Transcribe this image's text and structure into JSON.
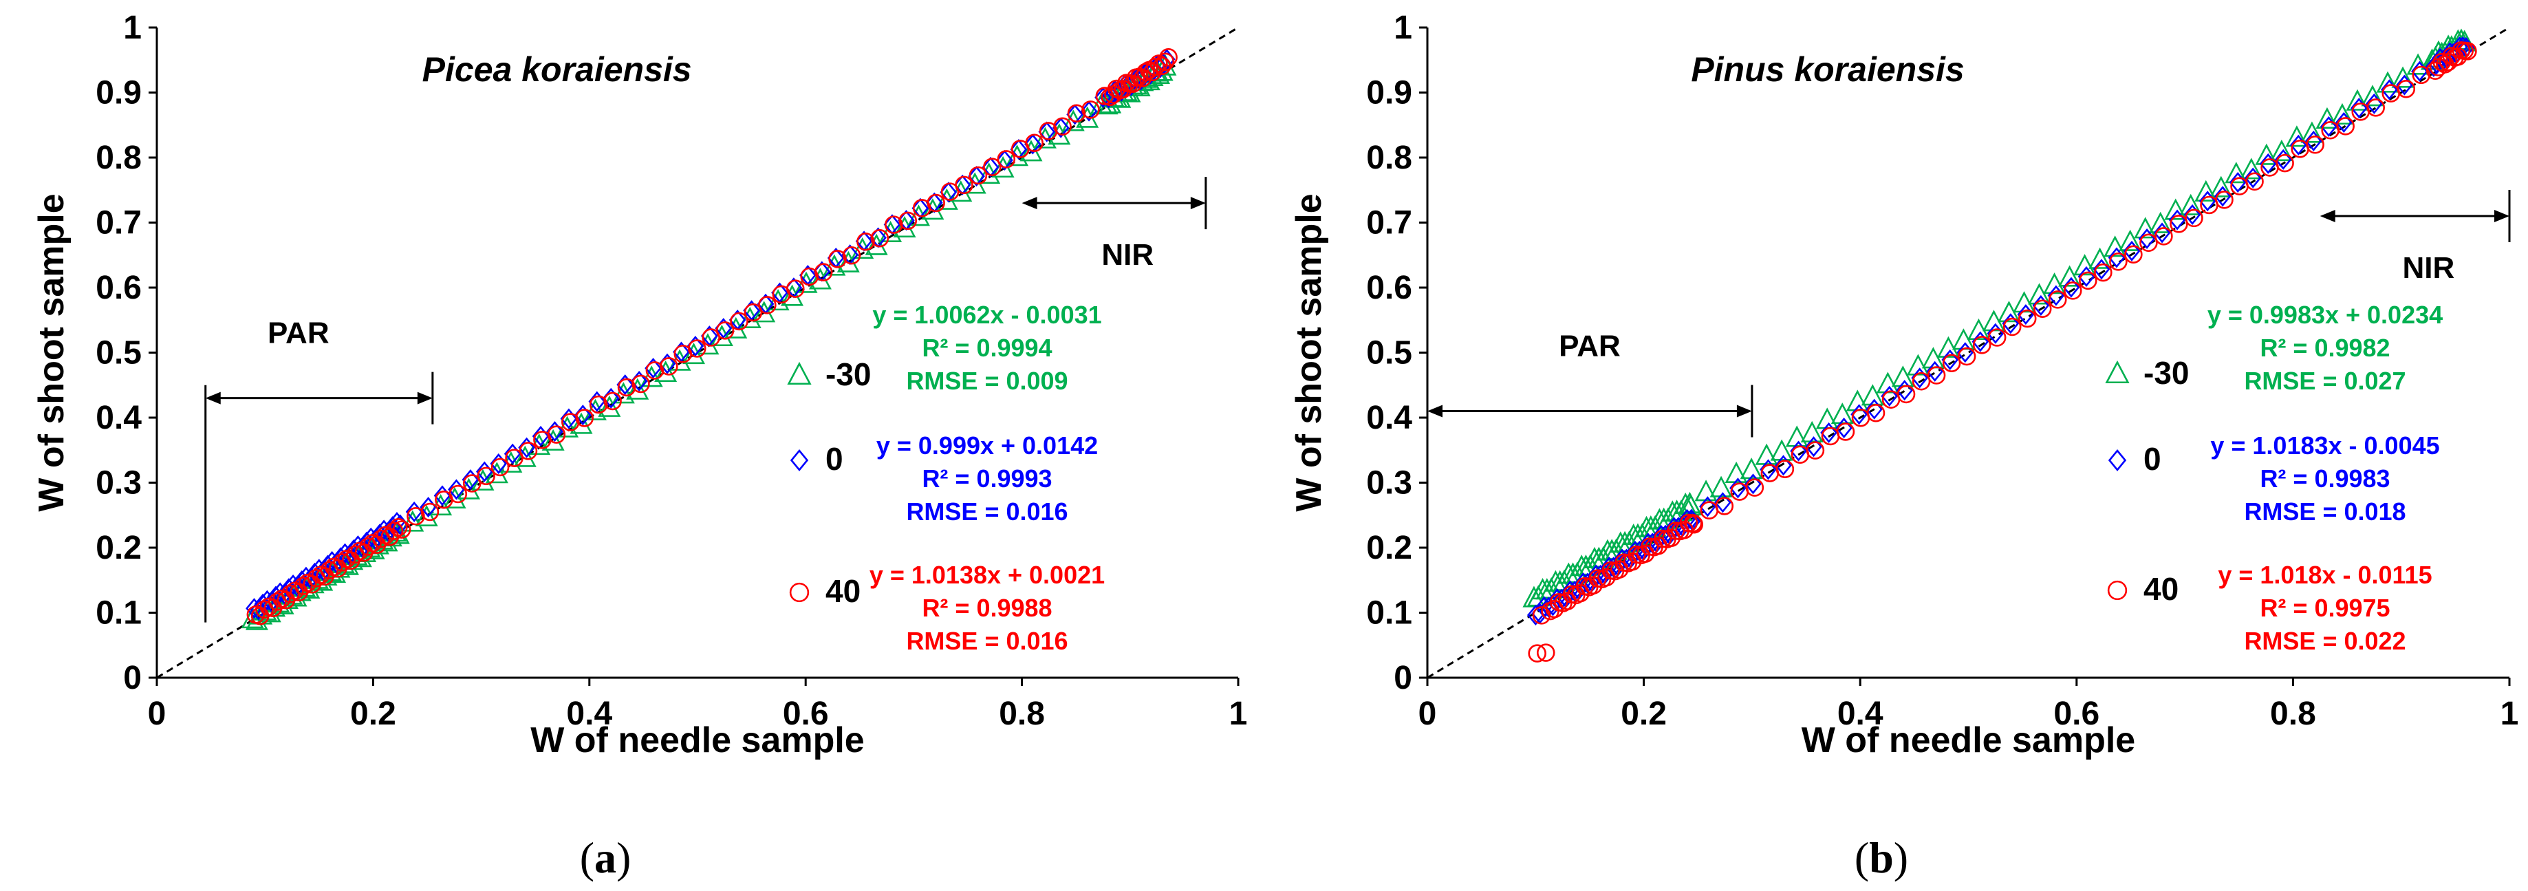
{
  "chart_data": [
    {
      "type": "scatter",
      "panel_label": "(a)",
      "panel_letter": "a",
      "title": "Picea koraiensis",
      "xlabel": "W of needle sample",
      "ylabel": "W of shoot sample",
      "xlim": [
        0,
        1
      ],
      "ylim": [
        0,
        1
      ],
      "x_ticks": [
        "0",
        "0.2",
        "0.4",
        "0.6",
        "0.8",
        "1"
      ],
      "y_ticks": [
        "0",
        "0.1",
        "0.2",
        "0.3",
        "0.4",
        "0.5",
        "0.6",
        "0.7",
        "0.8",
        "0.9",
        "1"
      ],
      "reference_line": "1:1",
      "bands": [
        {
          "label": "PAR",
          "x_start": 0.045,
          "x_end": 0.255,
          "arrow_y": 0.43
        },
        {
          "label": "NIR",
          "x_start": 0.8,
          "x_end": 0.97,
          "arrow_y": 0.73
        }
      ],
      "series": [
        {
          "name": "-30",
          "marker": "triangle",
          "color": "#00b050",
          "slope": 1.0062,
          "intercept": -0.0031,
          "equation": "y = 1.0062x - 0.0031",
          "r2": "R² = 0.9994",
          "rmse": "RMSE = 0.009"
        },
        {
          "name": "0",
          "marker": "diamond",
          "color": "#0000ff",
          "slope": 0.999,
          "intercept": 0.0142,
          "equation": "y = 0.999x + 0.0142",
          "r2": "R² = 0.9993",
          "rmse": "RMSE = 0.016"
        },
        {
          "name": "40",
          "marker": "circle",
          "color": "#ff0000",
          "slope": 1.0138,
          "intercept": 0.0021,
          "equation": "y = 1.0138x + 0.0021",
          "r2": "R² = 0.9988",
          "rmse": "RMSE = 0.016"
        }
      ],
      "point_groups": [
        {
          "x_min": 0.09,
          "x_max": 0.225,
          "step": 0.004,
          "dense": true
        },
        {
          "x_min": 0.225,
          "x_max": 0.88,
          "step": 0.013,
          "dense": false
        },
        {
          "x_min": 0.88,
          "x_max": 0.935,
          "step": 0.003,
          "dense": true
        }
      ]
    },
    {
      "type": "scatter",
      "panel_label": "(b)",
      "panel_letter": "b",
      "title": "Pinus koraiensis",
      "xlabel": "W of needle sample",
      "ylabel": "W of shoot sample",
      "xlim": [
        0,
        1
      ],
      "ylim": [
        0,
        1
      ],
      "x_ticks": [
        "0",
        "0.2",
        "0.4",
        "0.6",
        "0.8",
        "1"
      ],
      "y_ticks": [
        "0",
        "0.1",
        "0.2",
        "0.3",
        "0.4",
        "0.5",
        "0.6",
        "0.7",
        "0.8",
        "0.9",
        "1"
      ],
      "reference_line": "1:1",
      "bands": [
        {
          "label": "PAR",
          "x_start": 0.0,
          "x_end": 0.3,
          "arrow_y": 0.41
        },
        {
          "label": "NIR",
          "x_start": 0.825,
          "x_end": 1.0,
          "arrow_y": 0.71
        }
      ],
      "series": [
        {
          "name": "-30",
          "marker": "triangle",
          "color": "#00b050",
          "slope": 0.9983,
          "intercept": 0.0234,
          "equation": "y = 0.9983x + 0.0234",
          "r2": "R² = 0.9982",
          "rmse": "RMSE = 0.027"
        },
        {
          "name": "0",
          "marker": "diamond",
          "color": "#0000ff",
          "slope": 1.0183,
          "intercept": -0.0045,
          "equation": "y = 1.0183x - 0.0045",
          "r2": "R² = 0.9983",
          "rmse": "RMSE = 0.018"
        },
        {
          "name": "40",
          "marker": "circle",
          "color": "#ff0000",
          "slope": 1.018,
          "intercept": -0.0115,
          "equation": "y = 1.018x - 0.0115",
          "r2": "R² = 0.9975",
          "rmse": "RMSE = 0.022"
        }
      ],
      "point_groups": [
        {
          "x_min": 0.1,
          "x_max": 0.245,
          "step": 0.004,
          "dense": true
        },
        {
          "x_min": 0.245,
          "x_max": 0.93,
          "step": 0.014,
          "dense": false
        },
        {
          "x_min": 0.93,
          "x_max": 0.96,
          "step": 0.003,
          "dense": true
        }
      ]
    }
  ]
}
